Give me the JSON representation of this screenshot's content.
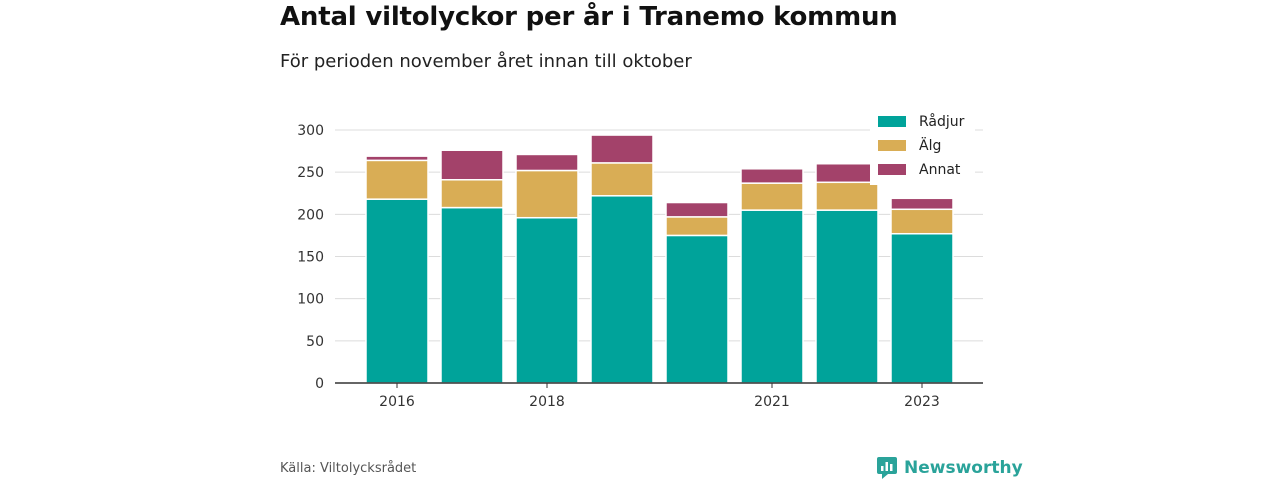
{
  "header": {
    "title": "Antal viltolyckor per år i Tranemo kommun",
    "subtitle": "För perioden november året innan till oktober"
  },
  "footer": {
    "source": "Källa: Viltolycksrådet",
    "brand": "Newsworthy",
    "brand_icon": "newsworthy-logo-icon"
  },
  "chart_data": {
    "type": "bar",
    "stacked": true,
    "categories": [
      "2016",
      "2017",
      "2018",
      "2019",
      "2020",
      "2021",
      "2022",
      "2023"
    ],
    "x_tick_labels": [
      "2016",
      "",
      "2018",
      "",
      "",
      "2021",
      "",
      "2023"
    ],
    "series": [
      {
        "name": "Rådjur",
        "color": "#00a39a",
        "values": [
          218,
          208,
          196,
          222,
          175,
          205,
          205,
          177
        ]
      },
      {
        "name": "Älg",
        "color": "#d9ad55",
        "values": [
          46,
          33,
          56,
          39,
          22,
          32,
          33,
          29
        ]
      },
      {
        "name": "Annat",
        "color": "#a3426a",
        "values": [
          5,
          35,
          19,
          33,
          17,
          17,
          22,
          13
        ]
      }
    ],
    "title": "Antal viltolyckor per år i Tranemo kommun",
    "ylim": [
      0,
      300
    ],
    "yticks": [
      0,
      50,
      100,
      150,
      200,
      250,
      300
    ],
    "grid": true,
    "legend_position": "top-right"
  }
}
